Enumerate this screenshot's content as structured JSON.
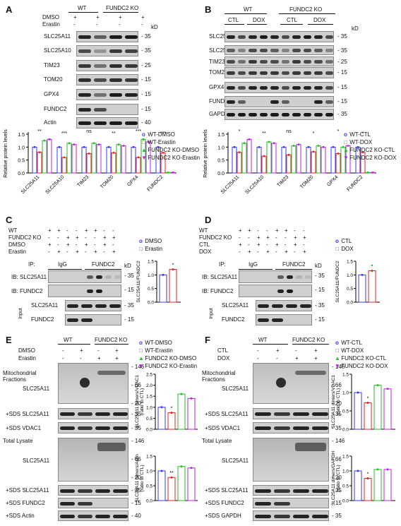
{
  "panels": {
    "A": "A",
    "B": "B",
    "C": "C",
    "D": "D",
    "E": "E",
    "F": "F"
  },
  "colors": {
    "blue": "#3a3af0",
    "red": "#e82020",
    "green": "#22c022",
    "magenta": "#c020e0"
  },
  "A": {
    "group_wt": "WT",
    "group_ko": "FUNDC2 KO",
    "treat": [
      "DMSO",
      "Erastin"
    ],
    "signs": [
      "+",
      "-",
      "+",
      "-",
      "+",
      "-",
      "+",
      "-"
    ],
    "signs2": [
      "-",
      "+",
      "-",
      "+",
      "-",
      "+",
      "-",
      "+"
    ],
    "rows": [
      "SLC25A11",
      "SLC25A10",
      "TIM23",
      "TOM20",
      "GPX4",
      "FUNDC2",
      "Actin"
    ],
    "kd": "kD",
    "mw": [
      "- 35",
      "- 35",
      "- 25",
      "- 15",
      "- 15",
      "- 15",
      "- 40"
    ],
    "legend": [
      "WT-DMSO",
      "WT-Erastin",
      "FUNDC2 KO-DMSO",
      "FUNDC2 KO-Erastin"
    ],
    "ylabel": "Relative protein levels",
    "sig": [
      "**",
      "***",
      "ns",
      "**",
      "***",
      "***",
      "***"
    ]
  },
  "B": {
    "group_wt": "WT",
    "group_ko": "FUNDC2 KO",
    "treat": [
      "CTL",
      "DOX",
      "CTL",
      "DOX"
    ],
    "rows": [
      "SLC25A11",
      "SLC25A10",
      "TIM23",
      "TOM20",
      "GPX4",
      "FUNDC2",
      "GAPDH"
    ],
    "kd": "kD",
    "mw": [
      "- 35",
      "- 35",
      "- 25",
      "- 15",
      "- 15",
      "- 15",
      "- 35"
    ],
    "legend": [
      "WT-CTL",
      "WT-DOX",
      "FUNDC2 KO-CTL",
      "FUNDC2 KO-DOX"
    ],
    "ylabel": "Relative protein levels",
    "sig": [
      "*",
      "**",
      "ns",
      "*",
      "*",
      "*",
      "*"
    ]
  },
  "C": {
    "row_labels": [
      "WT",
      "FUNDC2 KO",
      "DMSO",
      "Erastin"
    ],
    "signs": [
      [
        "+",
        "+",
        "-",
        "-",
        "+",
        "+",
        "-",
        "-"
      ],
      [
        "-",
        "-",
        "+",
        "+",
        "-",
        "-",
        "+",
        "+"
      ],
      [
        "+",
        "-",
        "+",
        "-",
        "+",
        "-",
        "+",
        "-"
      ],
      [
        "-",
        "+",
        "-",
        "+",
        "-",
        "+",
        "-",
        "+"
      ]
    ],
    "ip": "IP:",
    "igg": "IgG",
    "ipab": "FUNDC2",
    "kd": "kD",
    "ib": [
      "IB: SLC25A11",
      "IB: FUNDC2"
    ],
    "input": "Input",
    "input_rows": [
      "SLC25A11",
      "FUNDC2"
    ],
    "mw": [
      "- 35",
      "- 15",
      "- 35",
      "- 15"
    ],
    "legend": [
      "DMSO",
      "Erastin"
    ],
    "ylabel": "SLC25A11/FUNDC2",
    "sig": "*"
  },
  "D": {
    "row_labels": [
      "WT",
      "FUNDC2 KO",
      "CTL",
      "DOX"
    ],
    "signs": [
      [
        "+",
        "+",
        "-",
        "-",
        "+",
        "+",
        "-",
        "-"
      ],
      [
        "-",
        "-",
        "+",
        "+",
        "-",
        "-",
        "+",
        "+"
      ],
      [
        "+",
        "-",
        "+",
        "-",
        "+",
        "-",
        "+",
        "-"
      ],
      [
        "-",
        "+",
        "-",
        "+",
        "-",
        "+",
        "-",
        "+"
      ]
    ],
    "ip": "IP:",
    "igg": "IgG",
    "ipab": "FUNDC2",
    "kd": "kD",
    "ib": [
      "IB: SLC25A11",
      "IB: FUNDC2"
    ],
    "input": "Input",
    "input_rows": [
      "SLC25A11",
      "FUNDC2"
    ],
    "mw": [
      "- 35",
      "- 15",
      "- 35",
      "- 15"
    ],
    "legend": [
      "CTL",
      "DOX"
    ],
    "ylabel": "SLC25A11/FUNDC2",
    "sig": "*"
  },
  "E": {
    "group_wt": "WT",
    "group_ko": "FUNDC2 KO",
    "treat": [
      "DMSO",
      "Erastin"
    ],
    "signs": [
      "-",
      "+",
      "-",
      "+"
    ],
    "signs2": [
      "-",
      "-",
      "+",
      "+"
    ],
    "mito": "Mitochondrial Fractions",
    "total": "Total Lysate",
    "slc": "SLC25A11",
    "sds_rows_m": [
      "+SDS SLC25A11",
      "+SDS  VDAC1"
    ],
    "sds_rows_t": [
      "+SDS SLC25A11",
      "+SDS FUNDC2",
      "+SDS  Actin"
    ],
    "mw_m": [
      "- 146",
      "- 66",
      "- 20",
      "- 35",
      "- 35"
    ],
    "mw_t": [
      "- 146",
      "- 66",
      "- 20",
      "- 35",
      "- 15",
      "- 40"
    ],
    "legend": [
      "WT-DMSO",
      "WT-Erastin",
      "FUNDC2 KO-DMSO",
      "FUNDC2 KO-Erastin"
    ],
    "ylabel1": "SLC25A11 dimers/VDAC1",
    "ylabel1b": "(ratio to CTL)",
    "ylabel2": "SLC25A11 dimers/Actin",
    "ylabel2b": "(ratio to CTL)",
    "sig": [
      "*",
      "*",
      "**",
      "**"
    ]
  },
  "F": {
    "group_wt": "WT",
    "group_ko": "FUNDC2 KO",
    "treat": [
      "CTL",
      "DOX"
    ],
    "signs": [
      "-",
      "+",
      "-",
      "+"
    ],
    "signs2": [
      "-",
      "-",
      "+",
      "+"
    ],
    "mito": "Mitochondrial Fractions",
    "total": "Total Lysate",
    "slc": "SLC25A11",
    "sds_rows_m": [
      "+SDS SLC25A11",
      "+SDS  VDAC1"
    ],
    "sds_rows_t": [
      "+SDS SLC25A11",
      "+SDS FUNDC2",
      "+SDS GAPDH"
    ],
    "mw_m": [
      "- 146",
      "- 66",
      "- 20",
      "- 35",
      "- 35"
    ],
    "mw_t": [
      "- 146",
      "- 66",
      "- 20",
      "- 35",
      "- 15",
      "- 35"
    ],
    "legend": [
      "WT-CTL",
      "WT-DOX",
      "FUNDC2 KO-CTL",
      "FUNDC2 KO-DOX"
    ],
    "ylabel1": "SLC25A11 dimers/VDAC1",
    "ylabel1b": "(ratio to CTL)",
    "ylabel2": "SLC25A11 dimers/GAPDH",
    "ylabel2b": "(ratio to CTL)",
    "sig": [
      "*",
      "***",
      "*",
      "**"
    ]
  },
  "chart_data": [
    {
      "panel": "A",
      "type": "bar",
      "ylabel": "Relative protein levels",
      "ylim": [
        0,
        1.5
      ],
      "yticks": [
        0,
        0.5,
        1.0,
        1.5
      ],
      "categories": [
        "SLC25A11",
        "SLC25A10",
        "TIM23",
        "TOM20",
        "GPX4",
        "FUNDC2"
      ],
      "series": [
        {
          "name": "WT-DMSO",
          "values": [
            1.0,
            1.0,
            1.0,
            1.0,
            1.0,
            1.0
          ]
        },
        {
          "name": "WT-Erastin",
          "values": [
            0.8,
            0.6,
            0.75,
            0.78,
            0.6,
            0.78
          ]
        },
        {
          "name": "FUNDC2 KO-DMSO",
          "values": [
            1.25,
            1.15,
            1.15,
            1.1,
            1.3,
            0.02
          ]
        },
        {
          "name": "FUNDC2 KO-Erastin",
          "values": [
            1.3,
            1.1,
            1.1,
            1.05,
            1.2,
            0.02
          ]
        }
      ]
    },
    {
      "panel": "B",
      "type": "bar",
      "ylabel": "Relative protein levels",
      "ylim": [
        0,
        1.5
      ],
      "yticks": [
        0,
        0.5,
        1.0,
        1.5
      ],
      "categories": [
        "SLC25A11",
        "SLC25A10",
        "TIM23",
        "TOM20",
        "GPX4",
        "FUNDC2"
      ],
      "series": [
        {
          "name": "WT-CTL",
          "values": [
            1.0,
            1.0,
            1.0,
            1.0,
            1.0,
            1.0
          ]
        },
        {
          "name": "WT-DOX",
          "values": [
            0.8,
            0.65,
            0.7,
            0.82,
            0.75,
            0.8
          ]
        },
        {
          "name": "FUNDC2 KO-CTL",
          "values": [
            1.15,
            1.2,
            1.05,
            1.05,
            1.0,
            0.02
          ]
        },
        {
          "name": "FUNDC2 KO-DOX",
          "values": [
            1.3,
            1.15,
            1.1,
            1.0,
            1.05,
            0.02
          ]
        }
      ]
    },
    {
      "panel": "C",
      "type": "bar",
      "ylabel": "SLC25A11/FUNDC2",
      "ylim": [
        0,
        1.5
      ],
      "yticks": [
        0,
        0.5,
        1.0,
        1.5
      ],
      "categories": [
        "DMSO",
        "Erastin"
      ],
      "values": [
        1.0,
        1.2
      ]
    },
    {
      "panel": "D",
      "type": "bar",
      "ylabel": "SLC25A11/FUNDC2",
      "ylim": [
        0,
        1.5
      ],
      "yticks": [
        0,
        0.5,
        1.0,
        1.5
      ],
      "categories": [
        "CTL",
        "DOX"
      ],
      "values": [
        1.0,
        1.15
      ]
    },
    {
      "panel": "E1",
      "type": "bar",
      "ylabel": "SLC25A11 dimers/VDAC1",
      "ylim": [
        0,
        2.5
      ],
      "yticks": [
        0,
        0.5,
        1.0,
        1.5,
        2.0,
        2.5
      ],
      "categories": [
        "WT-DMSO",
        "WT-Erastin",
        "FUNDC2 KO-DMSO",
        "FUNDC2 KO-Erastin"
      ],
      "values": [
        1.0,
        0.75,
        1.6,
        1.4
      ]
    },
    {
      "panel": "E2",
      "type": "bar",
      "ylabel": "SLC25A11 dimers/Actin",
      "ylim": [
        0,
        1.5
      ],
      "yticks": [
        0,
        0.5,
        1.0,
        1.5
      ],
      "categories": [
        "WT-DMSO",
        "WT-Erastin",
        "FUNDC2 KO-DMSO",
        "FUNDC2 KO-Erastin"
      ],
      "values": [
        1.0,
        0.78,
        1.15,
        1.1
      ]
    },
    {
      "panel": "F1",
      "type": "bar",
      "ylabel": "SLC25A11 dimers/VDAC1",
      "ylim": [
        0,
        1.5
      ],
      "yticks": [
        0,
        0.5,
        1.0,
        1.5
      ],
      "categories": [
        "WT-CTL",
        "WT-DOX",
        "FUNDC2 KO-CTL",
        "FUNDC2 KO-DOX"
      ],
      "values": [
        1.0,
        0.72,
        1.2,
        1.1
      ]
    },
    {
      "panel": "F2",
      "type": "bar",
      "ylabel": "SLC25A11 dimers/GAPDH",
      "ylim": [
        0,
        1.5
      ],
      "yticks": [
        0,
        0.5,
        1.0,
        1.5
      ],
      "categories": [
        "WT-CTL",
        "WT-DOX",
        "FUNDC2 KO-CTL",
        "FUNDC2 KO-DOX"
      ],
      "values": [
        1.0,
        0.75,
        1.05,
        1.05
      ]
    }
  ]
}
